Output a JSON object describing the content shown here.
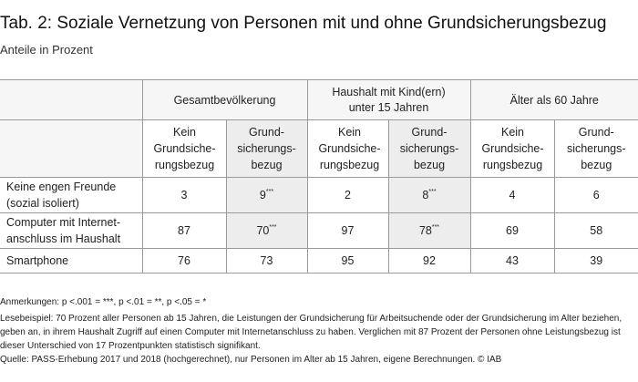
{
  "title": "Tab. 2: Soziale Vernetzung von Personen mit und ohne Grundsicherungsbezug",
  "subtitle": "Anteile in Prozent",
  "groups": [
    {
      "label": "Gesamtbevölkerung"
    },
    {
      "label": "Haushalt mit Kind(ern) unter 15 Jahren"
    },
    {
      "label": "Älter als 60 Jahre"
    }
  ],
  "subheaders": {
    "kein": "Kein Grundsiche-rungsbezug",
    "grund": "Grund-sicherungs-bezug"
  },
  "rows": [
    {
      "label": "Keine engen Freunde (sozial isoliert)",
      "cells": [
        {
          "value": "3",
          "sig": ""
        },
        {
          "value": "9",
          "sig": "***"
        },
        {
          "value": "2",
          "sig": ""
        },
        {
          "value": "8",
          "sig": "***"
        },
        {
          "value": "4",
          "sig": ""
        },
        {
          "value": "6",
          "sig": ""
        }
      ]
    },
    {
      "label": "Computer mit Internet-anschluss im Haushalt",
      "cells": [
        {
          "value": "87",
          "sig": ""
        },
        {
          "value": "70",
          "sig": "***"
        },
        {
          "value": "97",
          "sig": ""
        },
        {
          "value": "78",
          "sig": "***"
        },
        {
          "value": "69",
          "sig": ""
        },
        {
          "value": "58",
          "sig": ""
        }
      ]
    },
    {
      "label": "Smartphone",
      "cells": [
        {
          "value": "76",
          "sig": ""
        },
        {
          "value": "73",
          "sig": ""
        },
        {
          "value": "95",
          "sig": ""
        },
        {
          "value": "92",
          "sig": ""
        },
        {
          "value": "43",
          "sig": ""
        },
        {
          "value": "39",
          "sig": ""
        }
      ]
    }
  ],
  "notes": {
    "anmerkungen": "Anmerkungen: p <.001 = ***, p <.01 = **, p <.05 = *",
    "lesebeispiel": "Lesebeispiel: 70 Prozent aller Personen ab 15 Jahren, die Leistungen der Grundsicherung für Arbeitsuchende oder der Grundsicherung im Alter beziehen, geben an, in ihrem Haushalt Zugriff auf einen Computer mit Internetanschluss zu haben. Verglichen mit 87 Prozent der Personen ohne Leistungsbezug ist dieser Unterschied von 17 Prozentpunkten statistisch signifikant.",
    "quelle": "Quelle: PASS-Erhebung 2017 und 2018 (hochgerechnet), nur Personen im Alter ab 15 Jahren, eigene Berechnungen. © IAB"
  }
}
